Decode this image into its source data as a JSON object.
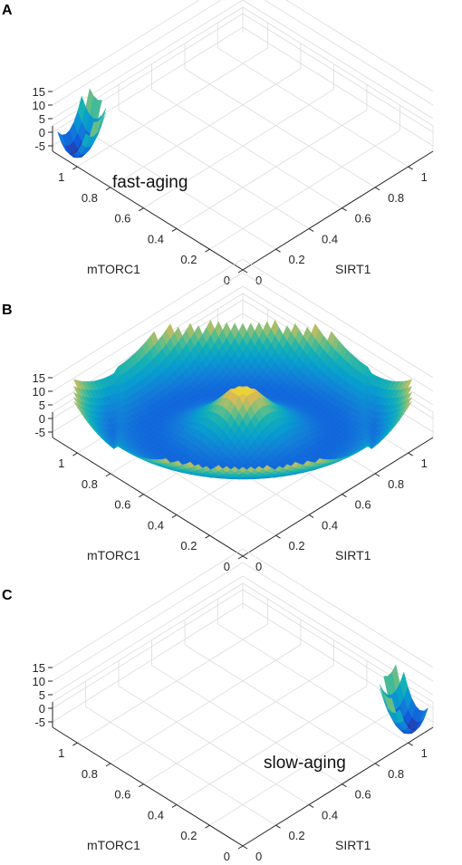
{
  "chart_data": [
    {
      "type": "surface",
      "panel_label": "A",
      "xlabel": "SIRT1",
      "ylabel": "mTORC1",
      "x_ticks": [
        "0",
        "0.2",
        "0.4",
        "0.6",
        "0.8",
        "1"
      ],
      "y_ticks": [
        "0",
        "0.2",
        "0.4",
        "0.6",
        "0.8",
        "1"
      ],
      "z_ticks": [
        "-5",
        "0",
        "5",
        "10",
        "15"
      ],
      "xlim": [
        0,
        1.15
      ],
      "ylim": [
        0,
        1.15
      ],
      "zlim": [
        -7,
        15
      ],
      "colormap": "parula",
      "annotation": "fast-aging",
      "basins": [
        {
          "center": [
            0.05,
            1.05
          ],
          "radius": 0.13,
          "rim_height": 12,
          "depth": -7
        }
      ]
    },
    {
      "type": "surface",
      "panel_label": "B",
      "xlabel": "SIRT1",
      "ylabel": "mTORC1",
      "x_ticks": [
        "0",
        "0.2",
        "0.4",
        "0.6",
        "0.8",
        "1"
      ],
      "y_ticks": [
        "0",
        "0.2",
        "0.4",
        "0.6",
        "0.8",
        "1"
      ],
      "z_ticks": [
        "-5",
        "0",
        "5",
        "10",
        "15"
      ],
      "xlim": [
        0,
        1.15
      ],
      "ylim": [
        0,
        1.15
      ],
      "zlim": [
        -7,
        15
      ],
      "colormap": "parula",
      "annotation": "",
      "valley": {
        "points": [
          [
            0.05,
            1.05
          ],
          [
            1.05,
            0.05
          ]
        ],
        "rim_height": 12,
        "depth": -7
      }
    },
    {
      "type": "surface",
      "panel_label": "C",
      "xlabel": "SIRT1",
      "ylabel": "mTORC1",
      "x_ticks": [
        "0",
        "0.2",
        "0.4",
        "0.6",
        "0.8",
        "1"
      ],
      "y_ticks": [
        "0",
        "0.2",
        "0.4",
        "0.6",
        "0.8",
        "1"
      ],
      "z_ticks": [
        "-5",
        "0",
        "5",
        "10",
        "15"
      ],
      "xlim": [
        0,
        1.15
      ],
      "ylim": [
        0,
        1.15
      ],
      "zlim": [
        -7,
        15
      ],
      "colormap": "parula",
      "annotation": "slow-aging",
      "basins": [
        {
          "center": [
            1.05,
            0.05
          ],
          "radius": 0.13,
          "rim_height": 12,
          "depth": -7
        }
      ]
    }
  ]
}
